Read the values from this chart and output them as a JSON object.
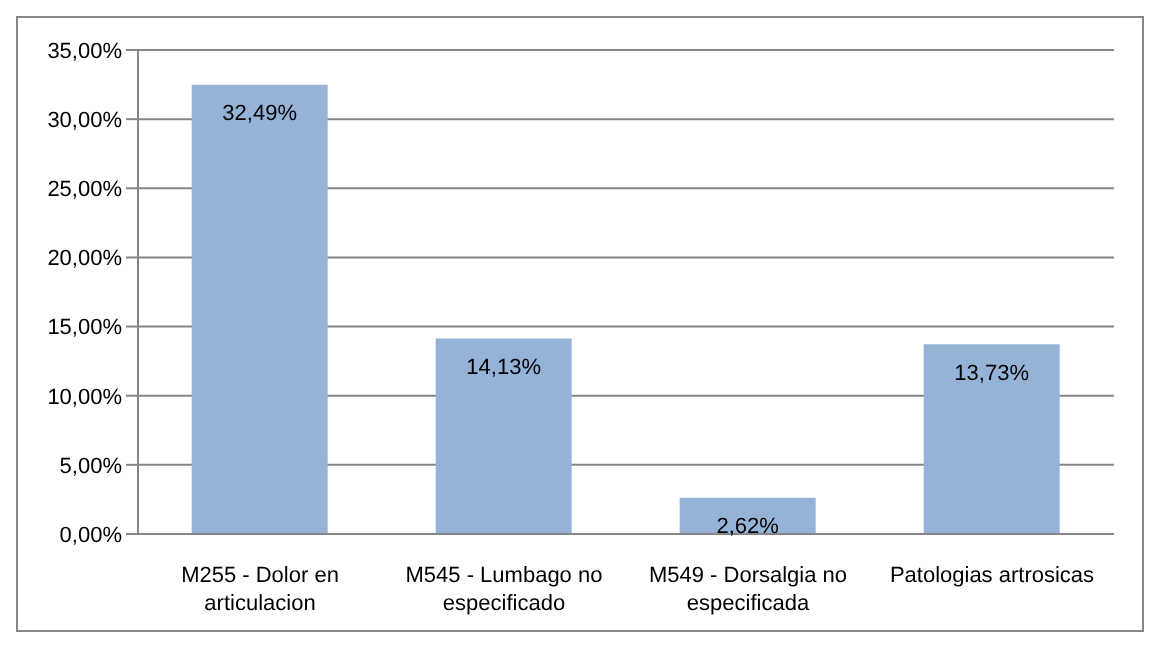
{
  "chart_data": {
    "type": "bar",
    "categories": [
      "M255 - Dolor en articulacion",
      "M545 - Lumbago no especificado",
      "M549 - Dorsalgia no especificada",
      "Patologias artrosicas"
    ],
    "values": [
      32.49,
      14.13,
      2.62,
      13.73
    ],
    "value_labels": [
      "32,49%",
      "14,13%",
      "2,62%",
      "13,73%"
    ],
    "color": "#95b3d7",
    "ylim": [
      0,
      35
    ],
    "yticks": [
      {
        "value": 0,
        "label": "0,00%"
      },
      {
        "value": 5,
        "label": "5,00%"
      },
      {
        "value": 10,
        "label": "10,00%"
      },
      {
        "value": 15,
        "label": "15,00%"
      },
      {
        "value": 20,
        "label": "20,00%"
      },
      {
        "value": 25,
        "label": "25,00%"
      },
      {
        "value": 30,
        "label": "30,00%"
      },
      {
        "value": 35,
        "label": "35,00%"
      }
    ],
    "grid": "y"
  }
}
